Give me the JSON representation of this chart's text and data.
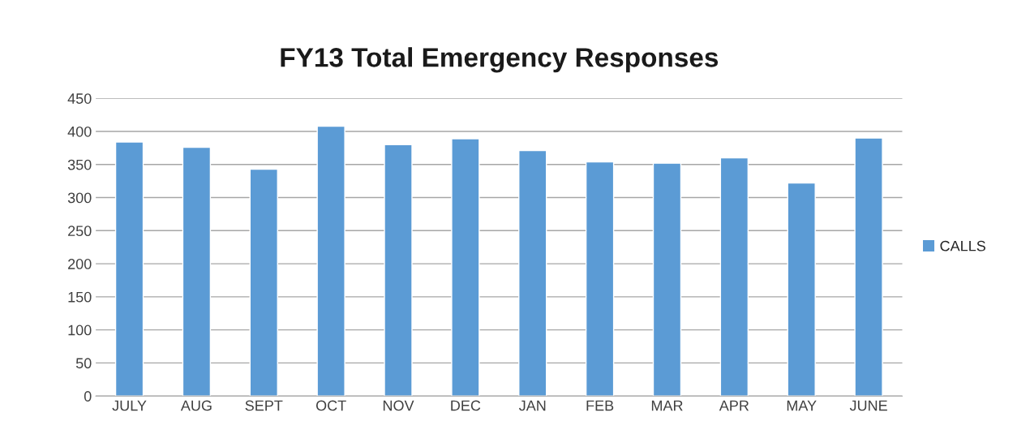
{
  "chart_data": {
    "type": "bar",
    "title": "FY13 Total Emergency Responses",
    "categories": [
      "JULY",
      "AUG",
      "SEPT",
      "OCT",
      "NOV",
      "DEC",
      "JAN",
      "FEB",
      "MAR",
      "APR",
      "MAY",
      "JUNE"
    ],
    "series": [
      {
        "name": "CALLS",
        "color": "#5b9bd5",
        "values": [
          384,
          376,
          343,
          408,
          380,
          389,
          371,
          354,
          352,
          360,
          322,
          390
        ]
      }
    ],
    "ylim": [
      0,
      450
    ],
    "yticks": [
      0,
      50,
      100,
      150,
      200,
      250,
      300,
      350,
      400,
      450
    ],
    "grid": "y",
    "legend": "right"
  }
}
